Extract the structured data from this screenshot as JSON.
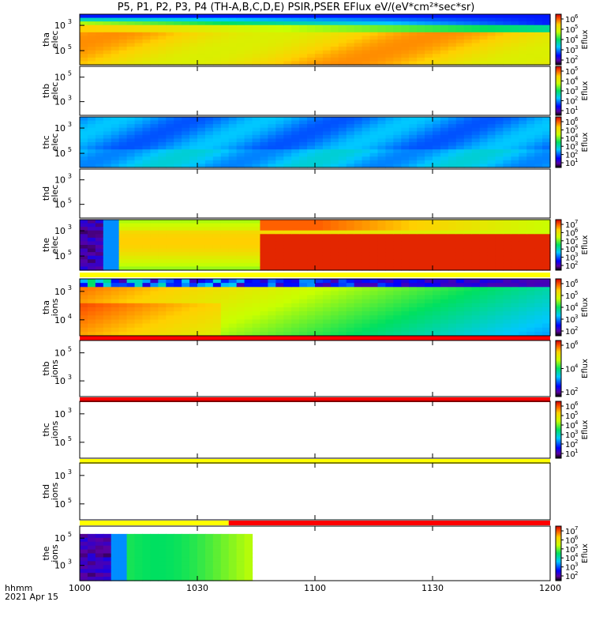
{
  "title": "P5, P1, P2, P3, P4 (TH-A,B,C,D,E) PSIR,PSER EFlux eV/(eV*cm²*sec*sr)",
  "footer": {
    "time_label": "hhmm",
    "date_label": "2021 Apr 15"
  },
  "colorbar_label": "Eflux",
  "chart_data": {
    "type": "heatmap",
    "x_range_minutes": [
      0,
      120
    ],
    "x_ticks": [
      {
        "t": 0,
        "label": "1000"
      },
      {
        "t": 30,
        "label": "1030"
      },
      {
        "t": 60,
        "label": "1100"
      },
      {
        "t": 90,
        "label": "1130"
      },
      {
        "t": 120,
        "label": "1200"
      }
    ],
    "panels": [
      {
        "label": [
          "tha",
          "elec"
        ],
        "y_ticks": [
          {
            "mant": "10",
            "exp": "3"
          },
          {
            "mant": "10",
            "exp": "5"
          }
        ],
        "data": true,
        "cbar_ticks": [
          {
            "mant": "10",
            "exp": "6"
          },
          {
            "mant": "10",
            "exp": "5"
          },
          {
            "mant": "10",
            "exp": "4"
          },
          {
            "mant": "10",
            "exp": "3"
          },
          {
            "mant": "10",
            "exp": "2"
          }
        ]
      },
      {
        "label": [
          "thb",
          "elec"
        ],
        "y_ticks": [
          {
            "mant": "10",
            "exp": "5"
          },
          {
            "mant": "10",
            "exp": "3"
          }
        ],
        "data": false,
        "cbar_ticks": [
          {
            "mant": "10",
            "exp": "5"
          },
          {
            "mant": "10",
            "exp": "4"
          },
          {
            "mant": "10",
            "exp": "3"
          },
          {
            "mant": "10",
            "exp": "2"
          },
          {
            "mant": "10",
            "exp": "1"
          }
        ]
      },
      {
        "label": [
          "thc",
          "elec"
        ],
        "y_ticks": [
          {
            "mant": "10",
            "exp": "3"
          },
          {
            "mant": "10",
            "exp": "5"
          }
        ],
        "data": true,
        "cbar_ticks": [
          {
            "mant": "10",
            "exp": "6"
          },
          {
            "mant": "10",
            "exp": "5"
          },
          {
            "mant": "10",
            "exp": "4"
          },
          {
            "mant": "10",
            "exp": "3"
          },
          {
            "mant": "10",
            "exp": "2"
          },
          {
            "mant": "10",
            "exp": "1"
          }
        ]
      },
      {
        "label": [
          "thd",
          "elec"
        ],
        "y_ticks": [
          {
            "mant": "10",
            "exp": "3"
          },
          {
            "mant": "10",
            "exp": "5"
          }
        ],
        "data": false,
        "cbar_ticks": []
      },
      {
        "label": [
          "the",
          "elec"
        ],
        "y_ticks": [
          {
            "mant": "10",
            "exp": "3"
          },
          {
            "mant": "10",
            "exp": "5"
          }
        ],
        "data": true,
        "cbar_ticks": [
          {
            "mant": "10",
            "exp": "7"
          },
          {
            "mant": "10",
            "exp": "6"
          },
          {
            "mant": "10",
            "exp": "5"
          },
          {
            "mant": "10",
            "exp": "4"
          },
          {
            "mant": "10",
            "exp": "3"
          },
          {
            "mant": "10",
            "exp": "2"
          }
        ]
      },
      {
        "label": [
          "tha",
          "ions"
        ],
        "y_ticks": [
          {
            "mant": "10",
            "exp": "3"
          },
          {
            "mant": "10",
            "exp": "4"
          }
        ],
        "data": true,
        "cbar_ticks": [
          {
            "mant": "10",
            "exp": "6"
          },
          {
            "mant": "10",
            "exp": "5"
          },
          {
            "mant": "10",
            "exp": "4"
          },
          {
            "mant": "10",
            "exp": "3"
          },
          {
            "mant": "10",
            "exp": "2"
          }
        ]
      },
      {
        "label": [
          "thb",
          "ions"
        ],
        "y_ticks": [
          {
            "mant": "10",
            "exp": "5"
          },
          {
            "mant": "10",
            "exp": "3"
          }
        ],
        "data": false,
        "cbar_ticks": [
          {
            "mant": "10",
            "exp": "6"
          },
          {
            "mant": "10",
            "exp": "4"
          },
          {
            "mant": "10",
            "exp": "2"
          }
        ]
      },
      {
        "label": [
          "thc",
          "ions"
        ],
        "y_ticks": [
          {
            "mant": "10",
            "exp": "3"
          },
          {
            "mant": "10",
            "exp": "5"
          }
        ],
        "data": false,
        "cbar_ticks": [
          {
            "mant": "10",
            "exp": "6"
          },
          {
            "mant": "10",
            "exp": "5"
          },
          {
            "mant": "10",
            "exp": "4"
          },
          {
            "mant": "10",
            "exp": "3"
          },
          {
            "mant": "10",
            "exp": "2"
          },
          {
            "mant": "10",
            "exp": "1"
          }
        ]
      },
      {
        "label": [
          "thd",
          "ions"
        ],
        "y_ticks": [
          {
            "mant": "10",
            "exp": "3"
          },
          {
            "mant": "10",
            "exp": "5"
          }
        ],
        "data": false,
        "cbar_ticks": []
      },
      {
        "label": [
          "the",
          "ions"
        ],
        "y_ticks": [
          {
            "mant": "10",
            "exp": "5"
          },
          {
            "mant": "10",
            "exp": "3"
          }
        ],
        "data": true,
        "cbar_ticks": [
          {
            "mant": "10",
            "exp": "7"
          },
          {
            "mant": "10",
            "exp": "6"
          },
          {
            "mant": "10",
            "exp": "5"
          },
          {
            "mant": "10",
            "exp": "4"
          },
          {
            "mant": "10",
            "exp": "3"
          },
          {
            "mant": "10",
            "exp": "2"
          }
        ]
      }
    ],
    "status_bars": [
      {
        "after_panel": 4,
        "segments": [
          {
            "from": 0,
            "to": 120,
            "color": "#ffff00"
          }
        ]
      },
      {
        "after_panel": 5,
        "segments": [
          {
            "from": 0,
            "to": 120,
            "color": "#ff0000"
          }
        ]
      },
      {
        "after_panel": 6,
        "segments": [
          {
            "from": 0,
            "to": 120,
            "color": "#ff0000"
          }
        ]
      },
      {
        "after_panel": 7,
        "segments": [
          {
            "from": 0,
            "to": 120,
            "color": "#ffff00"
          }
        ]
      },
      {
        "after_panel": 8,
        "segments": [
          {
            "from": 0,
            "to": 38,
            "color": "#ffff00"
          },
          {
            "from": 38,
            "to": 120,
            "color": "#ff0000"
          }
        ]
      }
    ]
  }
}
